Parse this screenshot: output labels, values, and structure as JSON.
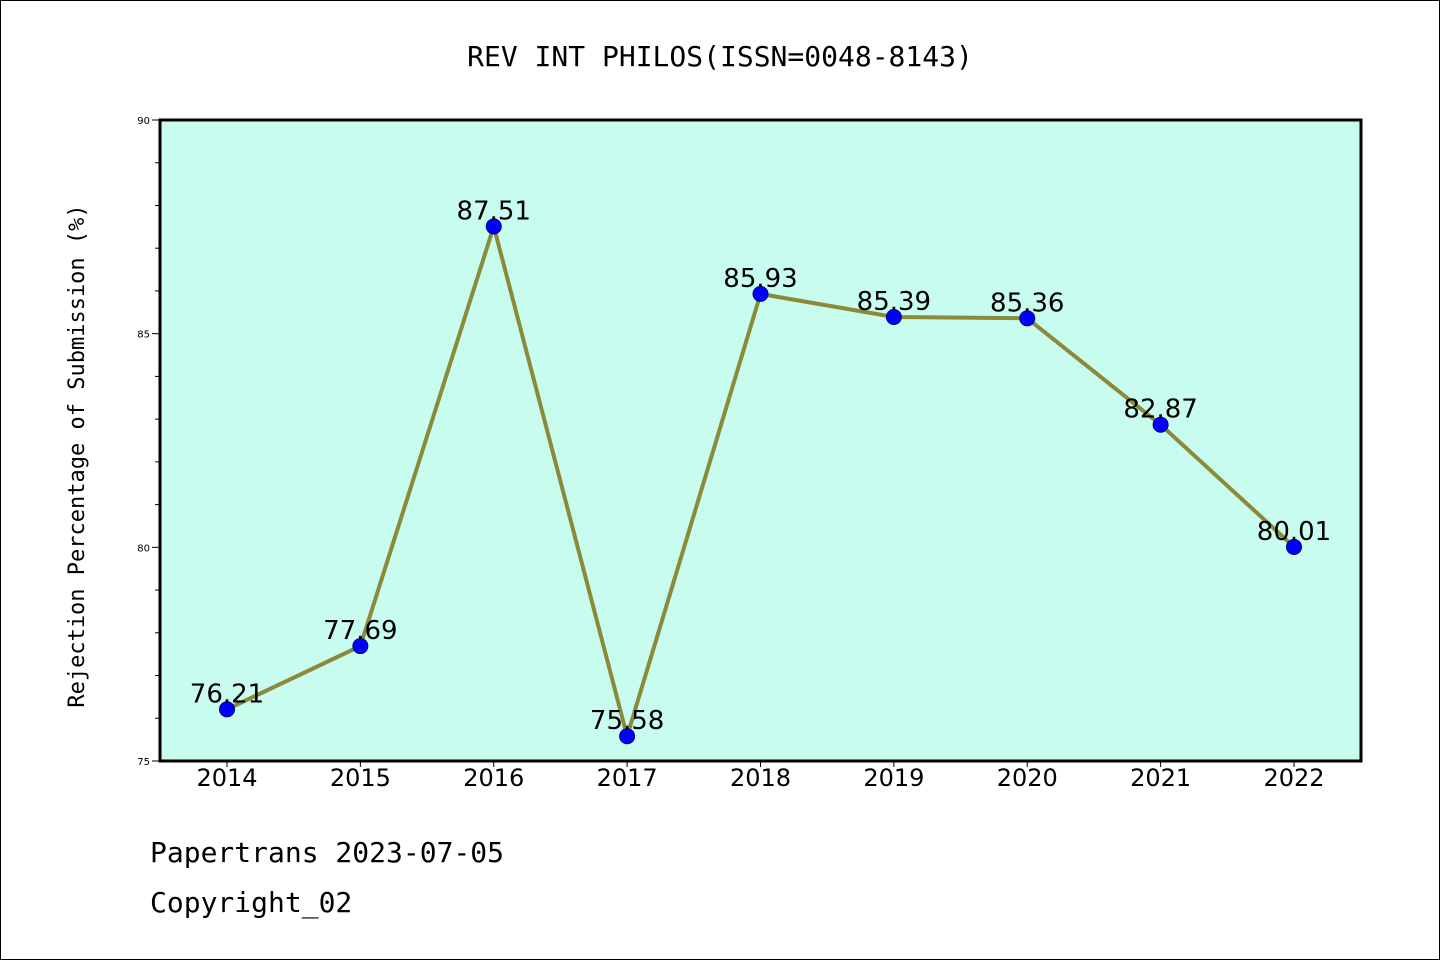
{
  "chart_data": {
    "type": "line",
    "title": "REV INT PHILOS(ISSN=0048-8143)",
    "xlabel": "",
    "ylabel": "Rejection Percentage of Submission (%)",
    "categories": [
      "2014",
      "2015",
      "2016",
      "2017",
      "2018",
      "2019",
      "2020",
      "2021",
      "2022"
    ],
    "series": [
      {
        "values": [
          76.21,
          77.69,
          87.51,
          75.58,
          85.93,
          85.39,
          85.36,
          82.87,
          80.01
        ],
        "labels": [
          "76.21",
          "77.69",
          "87.51",
          "75.58",
          "85.93",
          "85.39",
          "85.36",
          "82.87",
          "80.01"
        ]
      }
    ],
    "ylim": [
      75,
      90
    ],
    "yticks": [
      "75",
      "80",
      "85",
      "90"
    ],
    "grid": false,
    "colors": {
      "plot_background": "#c8fcee",
      "line": "#8b8a3a",
      "marker": "#0000ff"
    }
  },
  "footer": {
    "line1": "Papertrans 2023-07-05",
    "line2": "Copyright_02"
  }
}
